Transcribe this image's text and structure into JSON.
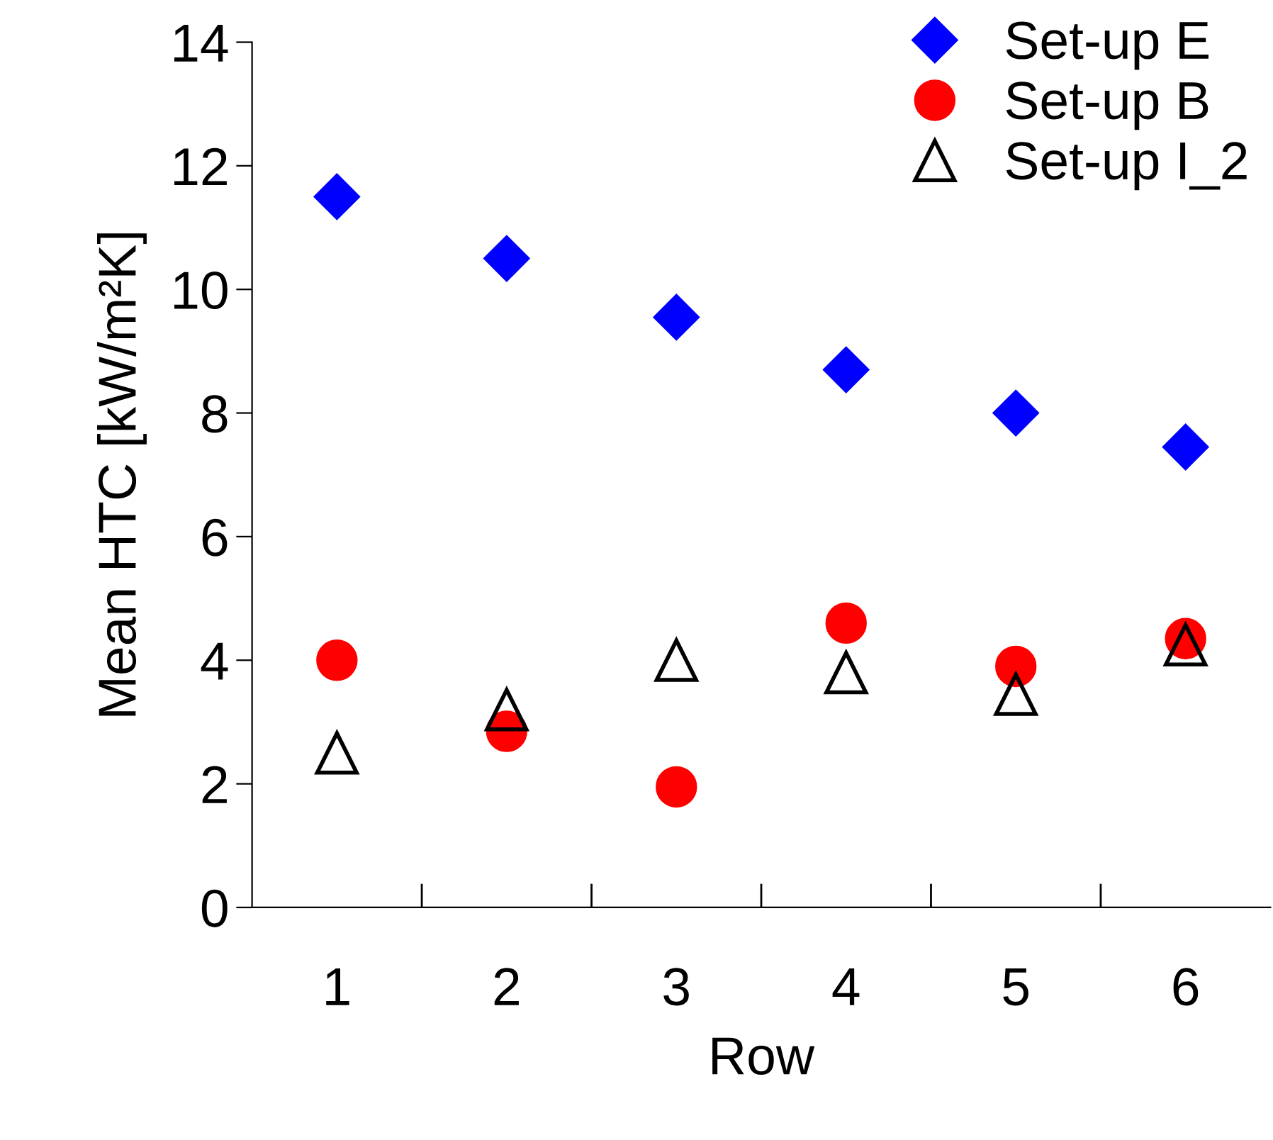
{
  "chart_data": {
    "type": "scatter",
    "xlabel": "Row",
    "ylabel": "Mean HTC [kW/m²K]",
    "categories": [
      "1",
      "2",
      "3",
      "4",
      "5",
      "6"
    ],
    "ylim": [
      0,
      14
    ],
    "yticks": [
      0,
      2,
      4,
      6,
      8,
      10,
      12,
      14
    ],
    "grid": false,
    "legend": "top right",
    "series": [
      {
        "name": "Set-up E",
        "color": "#0000ff",
        "marker": "diamond",
        "values": [
          11.5,
          10.5,
          9.55,
          8.7,
          8.0,
          7.45
        ]
      },
      {
        "name": "Set-up B",
        "color": "#ff0000",
        "marker": "circle",
        "values": [
          4.0,
          2.85,
          1.95,
          4.6,
          3.9,
          4.35
        ]
      },
      {
        "name": "Set-up I_2",
        "color": "#000000",
        "marker": "triangle",
        "values": [
          2.5,
          3.2,
          4.0,
          3.8,
          3.45,
          4.25
        ]
      }
    ]
  }
}
